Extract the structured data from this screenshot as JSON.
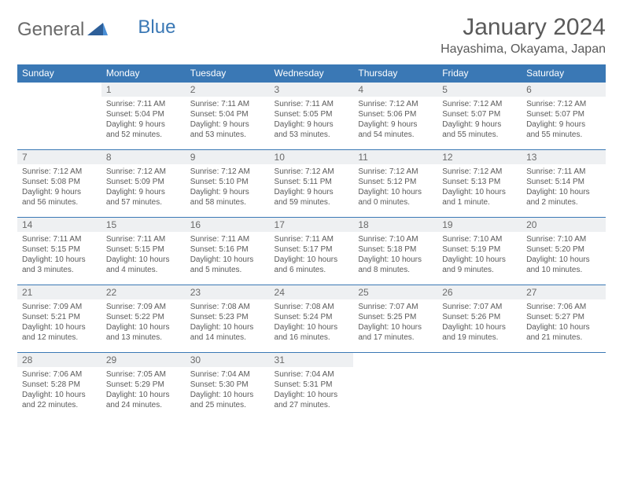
{
  "brand": {
    "part1": "General",
    "part2": "Blue"
  },
  "month_title": "January 2024",
  "location": "Hayashima, Okayama, Japan",
  "colors": {
    "accent": "#3a78b5",
    "header_row_bg": "#eef0f2",
    "text": "#5a5a5a",
    "background": "#ffffff"
  },
  "weekdays": [
    "Sunday",
    "Monday",
    "Tuesday",
    "Wednesday",
    "Thursday",
    "Friday",
    "Saturday"
  ],
  "weeks": [
    [
      {
        "empty": true
      },
      {
        "n": "1",
        "sunrise": "Sunrise: 7:11 AM",
        "sunset": "Sunset: 5:04 PM",
        "dl1": "Daylight: 9 hours",
        "dl2": "and 52 minutes."
      },
      {
        "n": "2",
        "sunrise": "Sunrise: 7:11 AM",
        "sunset": "Sunset: 5:04 PM",
        "dl1": "Daylight: 9 hours",
        "dl2": "and 53 minutes."
      },
      {
        "n": "3",
        "sunrise": "Sunrise: 7:11 AM",
        "sunset": "Sunset: 5:05 PM",
        "dl1": "Daylight: 9 hours",
        "dl2": "and 53 minutes."
      },
      {
        "n": "4",
        "sunrise": "Sunrise: 7:12 AM",
        "sunset": "Sunset: 5:06 PM",
        "dl1": "Daylight: 9 hours",
        "dl2": "and 54 minutes."
      },
      {
        "n": "5",
        "sunrise": "Sunrise: 7:12 AM",
        "sunset": "Sunset: 5:07 PM",
        "dl1": "Daylight: 9 hours",
        "dl2": "and 55 minutes."
      },
      {
        "n": "6",
        "sunrise": "Sunrise: 7:12 AM",
        "sunset": "Sunset: 5:07 PM",
        "dl1": "Daylight: 9 hours",
        "dl2": "and 55 minutes."
      }
    ],
    [
      {
        "n": "7",
        "sunrise": "Sunrise: 7:12 AM",
        "sunset": "Sunset: 5:08 PM",
        "dl1": "Daylight: 9 hours",
        "dl2": "and 56 minutes."
      },
      {
        "n": "8",
        "sunrise": "Sunrise: 7:12 AM",
        "sunset": "Sunset: 5:09 PM",
        "dl1": "Daylight: 9 hours",
        "dl2": "and 57 minutes."
      },
      {
        "n": "9",
        "sunrise": "Sunrise: 7:12 AM",
        "sunset": "Sunset: 5:10 PM",
        "dl1": "Daylight: 9 hours",
        "dl2": "and 58 minutes."
      },
      {
        "n": "10",
        "sunrise": "Sunrise: 7:12 AM",
        "sunset": "Sunset: 5:11 PM",
        "dl1": "Daylight: 9 hours",
        "dl2": "and 59 minutes."
      },
      {
        "n": "11",
        "sunrise": "Sunrise: 7:12 AM",
        "sunset": "Sunset: 5:12 PM",
        "dl1": "Daylight: 10 hours",
        "dl2": "and 0 minutes."
      },
      {
        "n": "12",
        "sunrise": "Sunrise: 7:12 AM",
        "sunset": "Sunset: 5:13 PM",
        "dl1": "Daylight: 10 hours",
        "dl2": "and 1 minute."
      },
      {
        "n": "13",
        "sunrise": "Sunrise: 7:11 AM",
        "sunset": "Sunset: 5:14 PM",
        "dl1": "Daylight: 10 hours",
        "dl2": "and 2 minutes."
      }
    ],
    [
      {
        "n": "14",
        "sunrise": "Sunrise: 7:11 AM",
        "sunset": "Sunset: 5:15 PM",
        "dl1": "Daylight: 10 hours",
        "dl2": "and 3 minutes."
      },
      {
        "n": "15",
        "sunrise": "Sunrise: 7:11 AM",
        "sunset": "Sunset: 5:15 PM",
        "dl1": "Daylight: 10 hours",
        "dl2": "and 4 minutes."
      },
      {
        "n": "16",
        "sunrise": "Sunrise: 7:11 AM",
        "sunset": "Sunset: 5:16 PM",
        "dl1": "Daylight: 10 hours",
        "dl2": "and 5 minutes."
      },
      {
        "n": "17",
        "sunrise": "Sunrise: 7:11 AM",
        "sunset": "Sunset: 5:17 PM",
        "dl1": "Daylight: 10 hours",
        "dl2": "and 6 minutes."
      },
      {
        "n": "18",
        "sunrise": "Sunrise: 7:10 AM",
        "sunset": "Sunset: 5:18 PM",
        "dl1": "Daylight: 10 hours",
        "dl2": "and 8 minutes."
      },
      {
        "n": "19",
        "sunrise": "Sunrise: 7:10 AM",
        "sunset": "Sunset: 5:19 PM",
        "dl1": "Daylight: 10 hours",
        "dl2": "and 9 minutes."
      },
      {
        "n": "20",
        "sunrise": "Sunrise: 7:10 AM",
        "sunset": "Sunset: 5:20 PM",
        "dl1": "Daylight: 10 hours",
        "dl2": "and 10 minutes."
      }
    ],
    [
      {
        "n": "21",
        "sunrise": "Sunrise: 7:09 AM",
        "sunset": "Sunset: 5:21 PM",
        "dl1": "Daylight: 10 hours",
        "dl2": "and 12 minutes."
      },
      {
        "n": "22",
        "sunrise": "Sunrise: 7:09 AM",
        "sunset": "Sunset: 5:22 PM",
        "dl1": "Daylight: 10 hours",
        "dl2": "and 13 minutes."
      },
      {
        "n": "23",
        "sunrise": "Sunrise: 7:08 AM",
        "sunset": "Sunset: 5:23 PM",
        "dl1": "Daylight: 10 hours",
        "dl2": "and 14 minutes."
      },
      {
        "n": "24",
        "sunrise": "Sunrise: 7:08 AM",
        "sunset": "Sunset: 5:24 PM",
        "dl1": "Daylight: 10 hours",
        "dl2": "and 16 minutes."
      },
      {
        "n": "25",
        "sunrise": "Sunrise: 7:07 AM",
        "sunset": "Sunset: 5:25 PM",
        "dl1": "Daylight: 10 hours",
        "dl2": "and 17 minutes."
      },
      {
        "n": "26",
        "sunrise": "Sunrise: 7:07 AM",
        "sunset": "Sunset: 5:26 PM",
        "dl1": "Daylight: 10 hours",
        "dl2": "and 19 minutes."
      },
      {
        "n": "27",
        "sunrise": "Sunrise: 7:06 AM",
        "sunset": "Sunset: 5:27 PM",
        "dl1": "Daylight: 10 hours",
        "dl2": "and 21 minutes."
      }
    ],
    [
      {
        "n": "28",
        "sunrise": "Sunrise: 7:06 AM",
        "sunset": "Sunset: 5:28 PM",
        "dl1": "Daylight: 10 hours",
        "dl2": "and 22 minutes."
      },
      {
        "n": "29",
        "sunrise": "Sunrise: 7:05 AM",
        "sunset": "Sunset: 5:29 PM",
        "dl1": "Daylight: 10 hours",
        "dl2": "and 24 minutes."
      },
      {
        "n": "30",
        "sunrise": "Sunrise: 7:04 AM",
        "sunset": "Sunset: 5:30 PM",
        "dl1": "Daylight: 10 hours",
        "dl2": "and 25 minutes."
      },
      {
        "n": "31",
        "sunrise": "Sunrise: 7:04 AM",
        "sunset": "Sunset: 5:31 PM",
        "dl1": "Daylight: 10 hours",
        "dl2": "and 27 minutes."
      },
      {
        "empty": true
      },
      {
        "empty": true
      },
      {
        "empty": true
      }
    ]
  ]
}
